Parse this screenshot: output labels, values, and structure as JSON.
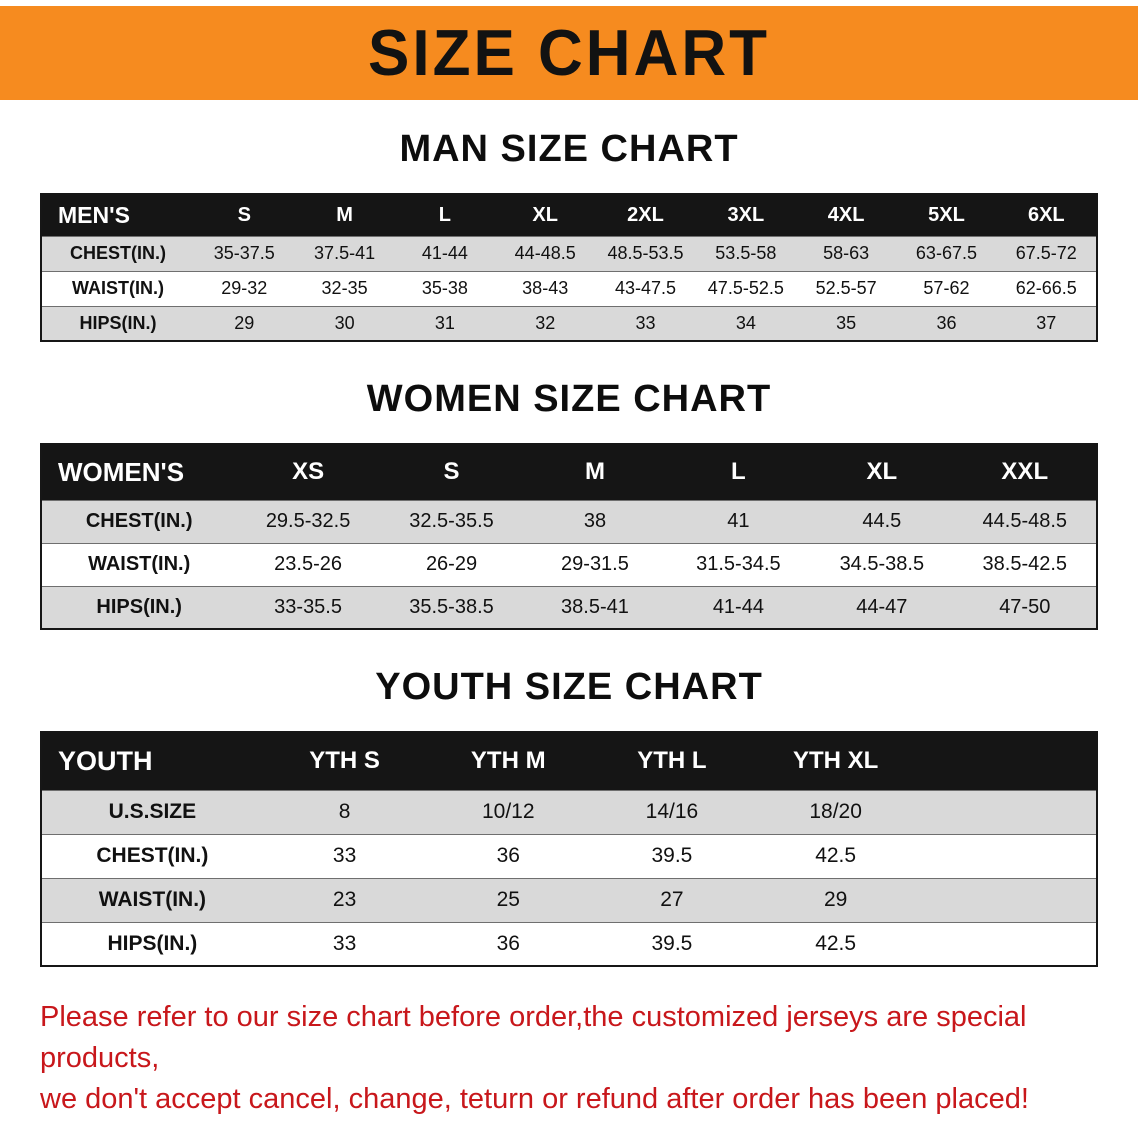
{
  "banner": {
    "title": "SIZE CHART",
    "bg_color": "#f68b1f",
    "text_color": "#121212"
  },
  "sections": [
    {
      "id": "men",
      "heading": "MAN SIZE CHART",
      "table": {
        "header": [
          "MEN'S",
          "S",
          "M",
          "L",
          "XL",
          "2XL",
          "3XL",
          "4XL",
          "5XL",
          "6XL"
        ],
        "rows": [
          [
            "CHEST(IN.)",
            "35-37.5",
            "37.5-41",
            "41-44",
            "44-48.5",
            "48.5-53.5",
            "53.5-58",
            "58-63",
            "63-67.5",
            "67.5-72"
          ],
          [
            "WAIST(IN.)",
            "29-32",
            "32-35",
            "35-38",
            "38-43",
            "43-47.5",
            "47.5-52.5",
            "52.5-57",
            "57-62",
            "62-66.5"
          ],
          [
            "HIPS(IN.)",
            "29",
            "30",
            "31",
            "32",
            "33",
            "34",
            "35",
            "36",
            "37"
          ]
        ]
      }
    },
    {
      "id": "women",
      "heading": "WOMEN SIZE CHART",
      "table": {
        "header": [
          "WOMEN'S",
          "XS",
          "S",
          "M",
          "L",
          "XL",
          "XXL"
        ],
        "rows": [
          [
            "CHEST(IN.)",
            "29.5-32.5",
            "32.5-35.5",
            "38",
            "41",
            "44.5",
            "44.5-48.5"
          ],
          [
            "WAIST(IN.)",
            "23.5-26",
            "26-29",
            "29-31.5",
            "31.5-34.5",
            "34.5-38.5",
            "38.5-42.5"
          ],
          [
            "HIPS(IN.)",
            "33-35.5",
            "35.5-38.5",
            "38.5-41",
            "41-44",
            "44-47",
            "47-50"
          ]
        ]
      }
    },
    {
      "id": "youth",
      "heading": "YOUTH SIZE CHART",
      "table": {
        "header": [
          "YOUTH",
          "YTH S",
          "YTH M",
          "YTH L",
          "YTH XL"
        ],
        "rows": [
          [
            "U.S.SIZE",
            "8",
            "10/12",
            "14/16",
            "18/20"
          ],
          [
            "CHEST(IN.)",
            "33",
            "36",
            "39.5",
            "42.5"
          ],
          [
            "WAIST(IN.)",
            "23",
            "25",
            "27",
            "29"
          ],
          [
            "HIPS(IN.)",
            "33",
            "36",
            "39.5",
            "42.5"
          ]
        ]
      }
    }
  ],
  "disclaimer": {
    "line1": "Please refer to our size chart before order,the customized jerseys are special products,",
    "line2": "we don't accept cancel, change, teturn or refund after order has been placed!",
    "text_color": "#c8171b"
  },
  "colors": {
    "row_stripe": "#d9d9d9",
    "table_header_bg": "#151515"
  }
}
